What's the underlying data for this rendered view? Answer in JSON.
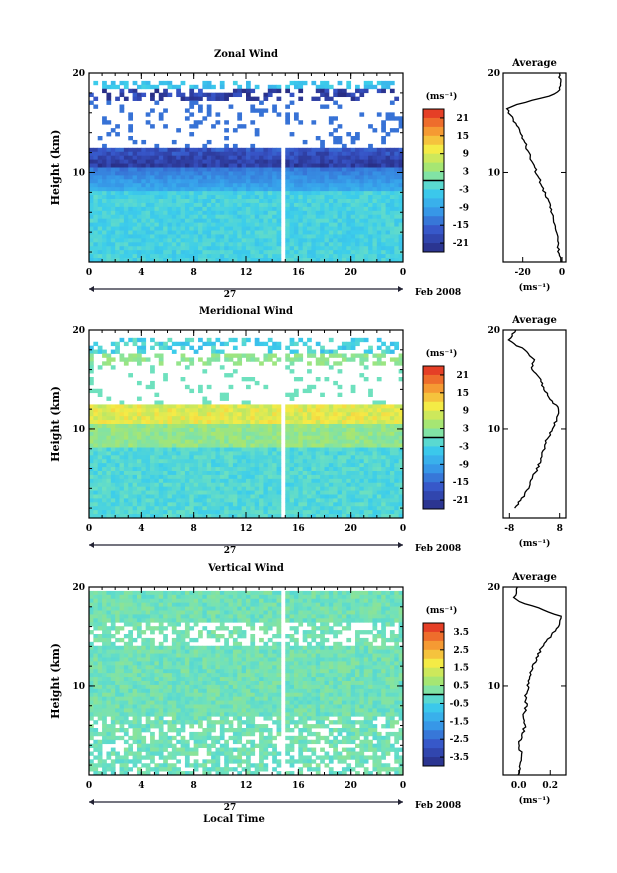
{
  "chart_data": [
    {
      "type": "heatmap",
      "title": "Zonal Wind",
      "ylabel": "Height (km)",
      "xlabel": "",
      "xlim": [
        0,
        24
      ],
      "ylim": [
        1,
        20
      ],
      "xticks": [
        "0",
        "4",
        "8",
        "12",
        "16",
        "20",
        "0"
      ],
      "yticks": [
        "10",
        "20"
      ],
      "date_label": "27",
      "month_label": "Feb 2008",
      "colorbar": {
        "unit": "(ms⁻¹)",
        "ticks": [
          "21",
          "15",
          "9",
          "3",
          "-3",
          "-9",
          "-15",
          "-21"
        ],
        "range": [
          -24,
          24
        ]
      },
      "field": "zonal",
      "average": {
        "title": "Average",
        "xlabel": "(ms⁻¹)",
        "xticks": [
          "-20",
          "0"
        ],
        "xlim": [
          -30,
          2
        ],
        "yticks": [
          "10",
          "20"
        ],
        "heights": [
          1,
          2,
          3,
          4,
          5,
          6,
          7,
          8,
          9,
          10,
          11,
          12,
          13,
          14,
          15,
          16,
          16.5,
          17,
          17.5,
          18,
          18.5,
          19,
          20
        ],
        "values": [
          -1,
          -1.5,
          -2,
          -3,
          -4,
          -5,
          -7,
          -9,
          -11,
          -13,
          -15,
          -17,
          -19,
          -21,
          -24,
          -27,
          -28,
          -20,
          -10,
          -2,
          -1,
          -1,
          -1
        ]
      }
    },
    {
      "type": "heatmap",
      "title": "Meridional Wind",
      "ylabel": "Height (km)",
      "xlabel": "",
      "xlim": [
        0,
        24
      ],
      "ylim": [
        1,
        20
      ],
      "xticks": [
        "0",
        "4",
        "8",
        "12",
        "16",
        "20",
        "0"
      ],
      "yticks": [
        "10",
        "20"
      ],
      "date_label": "27",
      "month_label": "Feb 2008",
      "colorbar": {
        "unit": "(ms⁻¹)",
        "ticks": [
          "21",
          "15",
          "9",
          "3",
          "-3",
          "-9",
          "-15",
          "-21"
        ],
        "range": [
          -24,
          24
        ]
      },
      "field": "meridional",
      "average": {
        "title": "Average",
        "xlabel": "(ms⁻¹)",
        "xticks": [
          "-8",
          "8"
        ],
        "xlim": [
          -10,
          10
        ],
        "yticks": [
          "10",
          "20"
        ],
        "heights": [
          2,
          3,
          4,
          5,
          6,
          7,
          8,
          9,
          10,
          11,
          12,
          13,
          14,
          15,
          16,
          17,
          18,
          18.5,
          19,
          19.5,
          20
        ],
        "values": [
          -6,
          -4,
          -2,
          -1,
          1,
          2,
          3,
          4,
          6,
          7,
          8,
          5,
          3,
          2,
          -1,
          0,
          -3,
          -6,
          -8,
          -7,
          -6
        ]
      }
    },
    {
      "type": "heatmap",
      "title": "Vertical Wind",
      "ylabel": "Height (km)",
      "xlabel": "Local Time",
      "xlim": [
        0,
        24
      ],
      "ylim": [
        1,
        20
      ],
      "xticks": [
        "0",
        "4",
        "8",
        "12",
        "16",
        "20",
        "0"
      ],
      "yticks": [
        "10",
        "20"
      ],
      "date_label": "27",
      "month_label": "Feb 2008",
      "colorbar": {
        "unit": "(ms⁻¹)",
        "ticks": [
          "3.5",
          "2.5",
          "1.5",
          "0.5",
          "-0.5",
          "-1.5",
          "-2.5",
          "-3.5"
        ],
        "range": [
          -4,
          4
        ]
      },
      "field": "vertical",
      "average": {
        "title": "Average",
        "xlabel": "(ms⁻¹)",
        "xticks": [
          "0.0",
          "0.2"
        ],
        "xlim": [
          -0.1,
          0.3
        ],
        "yticks": [
          "10",
          "20"
        ],
        "heights": [
          1,
          2,
          3,
          4,
          5,
          6,
          7,
          8,
          9,
          10,
          11,
          12,
          13,
          14,
          15,
          16,
          17,
          18,
          18.5,
          19,
          19.5,
          20
        ],
        "values": [
          0,
          0.01,
          0.02,
          0.0,
          0.02,
          0.04,
          0.03,
          0.05,
          0.04,
          0.06,
          0.07,
          0.09,
          0.12,
          0.15,
          0.2,
          0.25,
          0.28,
          0.1,
          0.0,
          -0.03,
          -0.02,
          -0.01
        ]
      }
    }
  ]
}
